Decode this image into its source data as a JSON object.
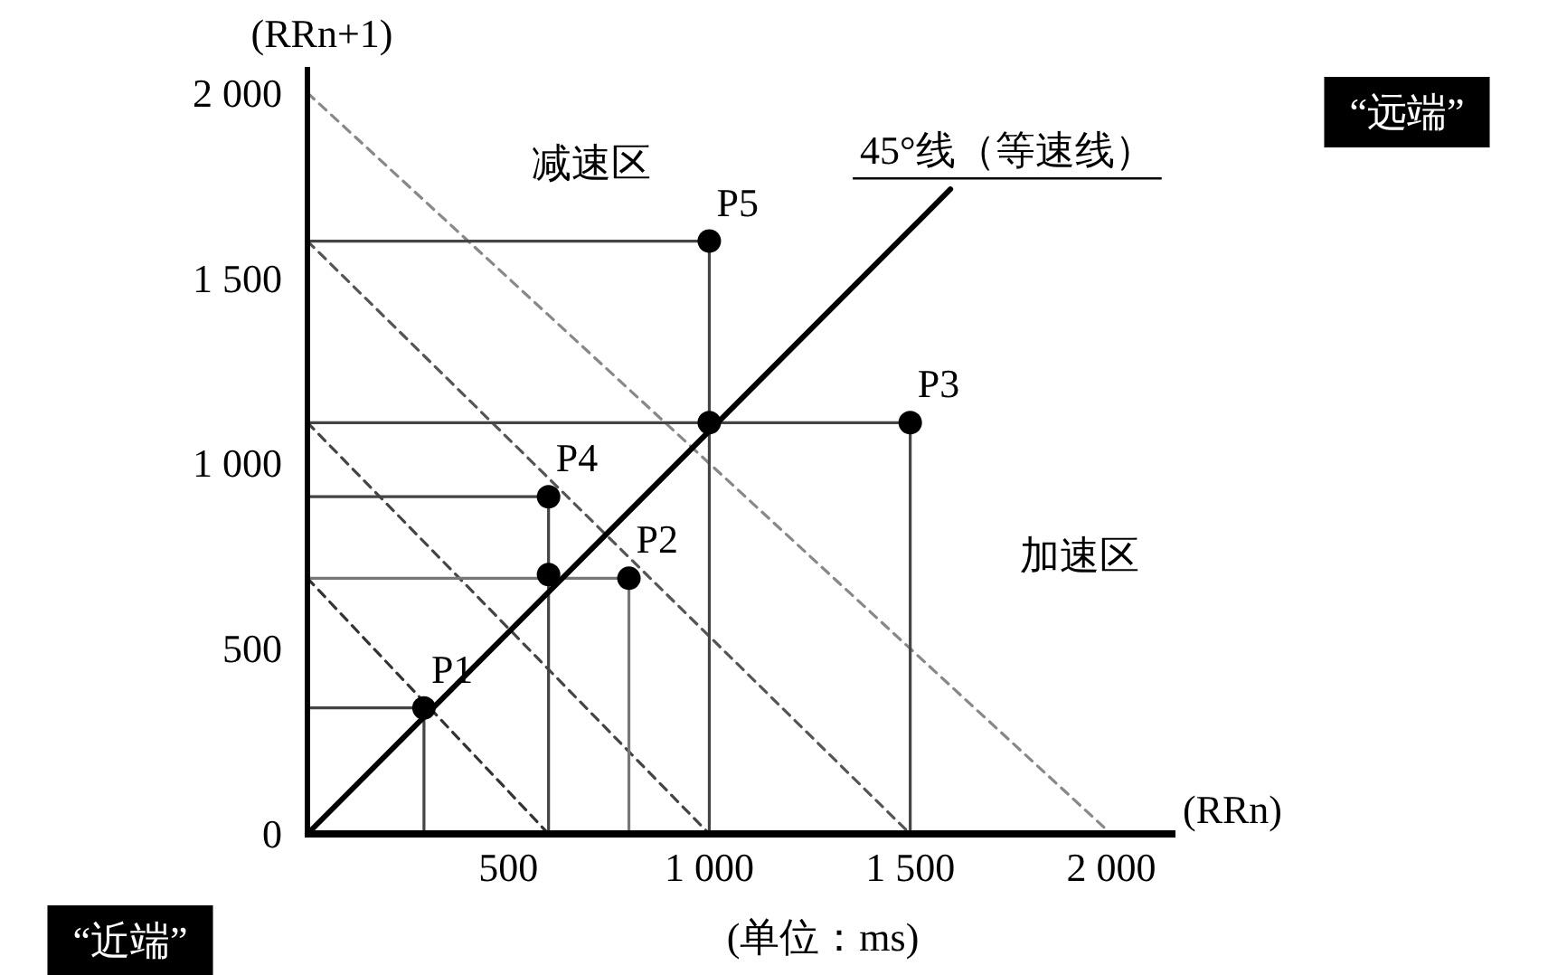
{
  "chart_data": {
    "type": "line",
    "xlabel": "(RRn)",
    "ylabel": "(RRn+1)",
    "xlim": [
      0,
      2160
    ],
    "ylim": [
      0,
      2070
    ],
    "xticks": [
      500,
      {
        "value": 1000,
        "label": "1 000"
      },
      {
        "value": 1500,
        "label": "1 500"
      },
      {
        "value": 2000,
        "label": "2 000"
      }
    ],
    "yticks": [
      0,
      500,
      {
        "value": 1000,
        "label": "1 000"
      },
      {
        "value": 1500,
        "label": "1 500"
      },
      {
        "value": 2000,
        "label": "2 000"
      }
    ],
    "grid": false,
    "series": [
      {
        "line_style": "dashed",
        "color": "#888888",
        "x": [
          0,
          2000
        ],
        "values": [
          2000,
          0
        ]
      },
      {
        "line_style": "dashed",
        "color": "#555555",
        "x": [
          0,
          1500
        ],
        "values": [
          1600,
          0
        ]
      },
      {
        "line_style": "dashed",
        "color": "#444444",
        "x": [
          0,
          1000
        ],
        "values": [
          1110,
          0
        ]
      },
      {
        "line_style": "dashed",
        "color": "#333333",
        "x": [
          0,
          600
        ],
        "values": [
          690,
          0
        ]
      },
      {
        "line_style": "solid",
        "color": "#444444",
        "x": [
          0,
          290,
          290
        ],
        "values": [
          340,
          340,
          0
        ]
      },
      {
        "line_style": "solid",
        "color": "#444444",
        "x": [
          0,
          600,
          600
        ],
        "values": [
          910,
          910,
          0
        ]
      },
      {
        "line_style": "solid",
        "color": "#777777",
        "x": [
          0,
          800,
          800
        ],
        "values": [
          690,
          690,
          0
        ]
      },
      {
        "line_style": "solid",
        "color": "#444444",
        "x": [
          0,
          1000,
          1000
        ],
        "values": [
          1600,
          1600,
          0
        ]
      },
      {
        "line_style": "solid",
        "color": "#444444",
        "x": [
          0,
          1500,
          1500
        ],
        "values": [
          1110,
          1110,
          0
        ]
      },
      {
        "name": "45°线（等速线）",
        "line_style": "solid",
        "color": "#000000",
        "x": [
          0,
          1600
        ],
        "values": [
          0,
          1740
        ]
      },
      {
        "type": "scatter",
        "marker": "circle",
        "color": "#000000",
        "x": [
          290,
          600,
          600,
          800,
          1000,
          1000,
          1500
        ],
        "values": [
          340,
          700,
          910,
          690,
          1110,
          1600,
          1110
        ]
      }
    ],
    "annotations": [
      {
        "text": "P1",
        "x": 290,
        "y": 340
      },
      {
        "text": "P2",
        "x": 800,
        "y": 690
      },
      {
        "text": "P3",
        "x": 1500,
        "y": 1110
      },
      {
        "text": "P4",
        "x": 600,
        "y": 910
      },
      {
        "text": "P5",
        "x": 1000,
        "y": 1600
      },
      "减速区",
      "加速区",
      "“远端”",
      "“近端”",
      "(单位：ms)"
    ]
  }
}
